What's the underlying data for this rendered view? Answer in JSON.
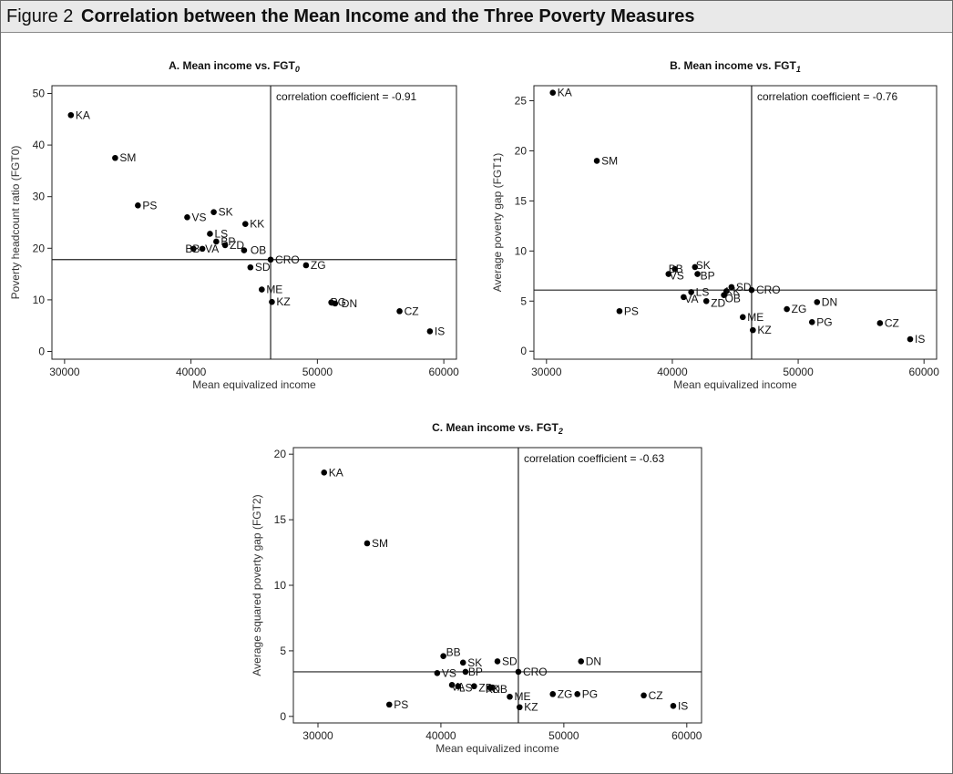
{
  "figure": {
    "number": "Figure 2",
    "title": "Correlation between the Mean Income and the Three Poverty Measures"
  },
  "colors": {
    "header_bg": "#e9e9e9",
    "frame": "#6b6b6b",
    "points": "#000000"
  },
  "chart_data": [
    {
      "type": "scatter",
      "title": "A. Mean income vs. FGT",
      "title_sub": "0",
      "xlabel": "Mean equivalized income",
      "ylabel": "Poverty headcount ratio (FGT0)",
      "xlim": [
        29000,
        61000
      ],
      "ylim": [
        -1.5,
        51.5
      ],
      "xticks": [
        30000,
        40000,
        50000,
        60000
      ],
      "yticks": [
        0,
        10,
        20,
        30,
        40,
        50
      ],
      "grid": false,
      "annotation": "correlation coefficient = -0.91",
      "ref_lines": {
        "x": 46300,
        "y": 17.8
      },
      "points": [
        {
          "label": "KA",
          "x": 30500,
          "y": 45.8
        },
        {
          "label": "SM",
          "x": 34000,
          "y": 37.5
        },
        {
          "label": "PS",
          "x": 35800,
          "y": 28.3
        },
        {
          "label": "VS",
          "x": 39700,
          "y": 26.0
        },
        {
          "label": "SK",
          "x": 41800,
          "y": 27.0
        },
        {
          "label": "KK",
          "x": 44300,
          "y": 24.7
        },
        {
          "label": "LS",
          "x": 41500,
          "y": 22.8
        },
        {
          "label": "BP",
          "x": 42000,
          "y": 21.3
        },
        {
          "label": "ZD",
          "x": 42700,
          "y": 20.6
        },
        {
          "label": "BB",
          "x": 40200,
          "y": 19.9
        },
        {
          "label": "VA",
          "x": 40900,
          "y": 19.9
        },
        {
          "label": "OB",
          "x": 44200,
          "y": 19.6
        },
        {
          "label": "CRO",
          "x": 46300,
          "y": 17.8
        },
        {
          "label": "SD",
          "x": 44700,
          "y": 16.3
        },
        {
          "label": "ZG",
          "x": 49100,
          "y": 16.7
        },
        {
          "label": "ME",
          "x": 45600,
          "y": 12.0
        },
        {
          "label": "KZ",
          "x": 46400,
          "y": 9.6
        },
        {
          "label": "PG",
          "x": 51100,
          "y": 9.5
        },
        {
          "label": "DN",
          "x": 51400,
          "y": 9.3
        },
        {
          "label": "CZ",
          "x": 56500,
          "y": 7.8
        },
        {
          "label": "IS",
          "x": 58900,
          "y": 3.9
        }
      ]
    },
    {
      "type": "scatter",
      "title": "B. Mean income vs. FGT",
      "title_sub": "1",
      "xlabel": "Mean equivalized income",
      "ylabel": "Average poverty gap (FGT1)",
      "xlim": [
        29000,
        61000
      ],
      "ylim": [
        -0.8,
        26.5
      ],
      "xticks": [
        30000,
        40000,
        50000,
        60000
      ],
      "yticks": [
        0,
        5,
        10,
        15,
        20,
        25
      ],
      "grid": false,
      "annotation": "correlation coefficient = -0.76",
      "ref_lines": {
        "x": 46300,
        "y": 6.1
      },
      "points": [
        {
          "label": "KA",
          "x": 30500,
          "y": 25.8
        },
        {
          "label": "SM",
          "x": 34000,
          "y": 19.0
        },
        {
          "label": "BB",
          "x": 40200,
          "y": 8.2
        },
        {
          "label": "SK",
          "x": 41800,
          "y": 8.4
        },
        {
          "label": "VS",
          "x": 39700,
          "y": 7.7
        },
        {
          "label": "BP",
          "x": 42000,
          "y": 7.7
        },
        {
          "label": "SD",
          "x": 44700,
          "y": 6.4
        },
        {
          "label": "CRO",
          "x": 46300,
          "y": 6.1
        },
        {
          "label": "KK",
          "x": 44300,
          "y": 6.0
        },
        {
          "label": "LS",
          "x": 41500,
          "y": 5.9
        },
        {
          "label": "OB",
          "x": 44100,
          "y": 5.6
        },
        {
          "label": "VA",
          "x": 40900,
          "y": 5.4
        },
        {
          "label": "ZD",
          "x": 42700,
          "y": 5.0
        },
        {
          "label": "DN",
          "x": 51500,
          "y": 4.9
        },
        {
          "label": "PS",
          "x": 35800,
          "y": 4.0
        },
        {
          "label": "ZG",
          "x": 49100,
          "y": 4.2
        },
        {
          "label": "ME",
          "x": 45600,
          "y": 3.4
        },
        {
          "label": "PG",
          "x": 51100,
          "y": 2.9
        },
        {
          "label": "CZ",
          "x": 56500,
          "y": 2.8
        },
        {
          "label": "KZ",
          "x": 46400,
          "y": 2.1
        },
        {
          "label": "IS",
          "x": 58900,
          "y": 1.2
        }
      ]
    },
    {
      "type": "scatter",
      "title": "C. Mean income vs. FGT",
      "title_sub": "2",
      "xlabel": "Mean equivalized income",
      "ylabel": "Average squared poverty gap (FGT2)",
      "xlim": [
        28000,
        61200
      ],
      "ylim": [
        -0.5,
        20.5
      ],
      "xticks": [
        30000,
        40000,
        50000,
        60000
      ],
      "yticks": [
        0,
        5,
        10,
        15,
        20
      ],
      "grid": false,
      "annotation": "correlation coefficient = -0.63",
      "ref_lines": {
        "x": 46300,
        "y": 3.4
      },
      "points": [
        {
          "label": "KA",
          "x": 30500,
          "y": 18.6
        },
        {
          "label": "SM",
          "x": 34000,
          "y": 13.2
        },
        {
          "label": "BB",
          "x": 40200,
          "y": 4.6
        },
        {
          "label": "SK",
          "x": 41800,
          "y": 4.1
        },
        {
          "label": "SD",
          "x": 44600,
          "y": 4.2
        },
        {
          "label": "DN",
          "x": 51400,
          "y": 4.2
        },
        {
          "label": "BP",
          "x": 42000,
          "y": 3.4
        },
        {
          "label": "VS",
          "x": 39700,
          "y": 3.3
        },
        {
          "label": "CRO",
          "x": 46300,
          "y": 3.4
        },
        {
          "label": "VA",
          "x": 40900,
          "y": 2.4
        },
        {
          "label": "LS",
          "x": 41400,
          "y": 2.3
        },
        {
          "label": "ZD",
          "x": 42700,
          "y": 2.3
        },
        {
          "label": "OB",
          "x": 44200,
          "y": 2.2
        },
        {
          "label": "KK",
          "x": 44000,
          "y": 2.2
        },
        {
          "label": "ME",
          "x": 45600,
          "y": 1.5
        },
        {
          "label": "ZG",
          "x": 49100,
          "y": 1.7
        },
        {
          "label": "PG",
          "x": 51100,
          "y": 1.7
        },
        {
          "label": "CZ",
          "x": 56500,
          "y": 1.6
        },
        {
          "label": "PS",
          "x": 35800,
          "y": 0.9
        },
        {
          "label": "KZ",
          "x": 46400,
          "y": 0.7
        },
        {
          "label": "IS",
          "x": 58900,
          "y": 0.8
        }
      ]
    }
  ]
}
